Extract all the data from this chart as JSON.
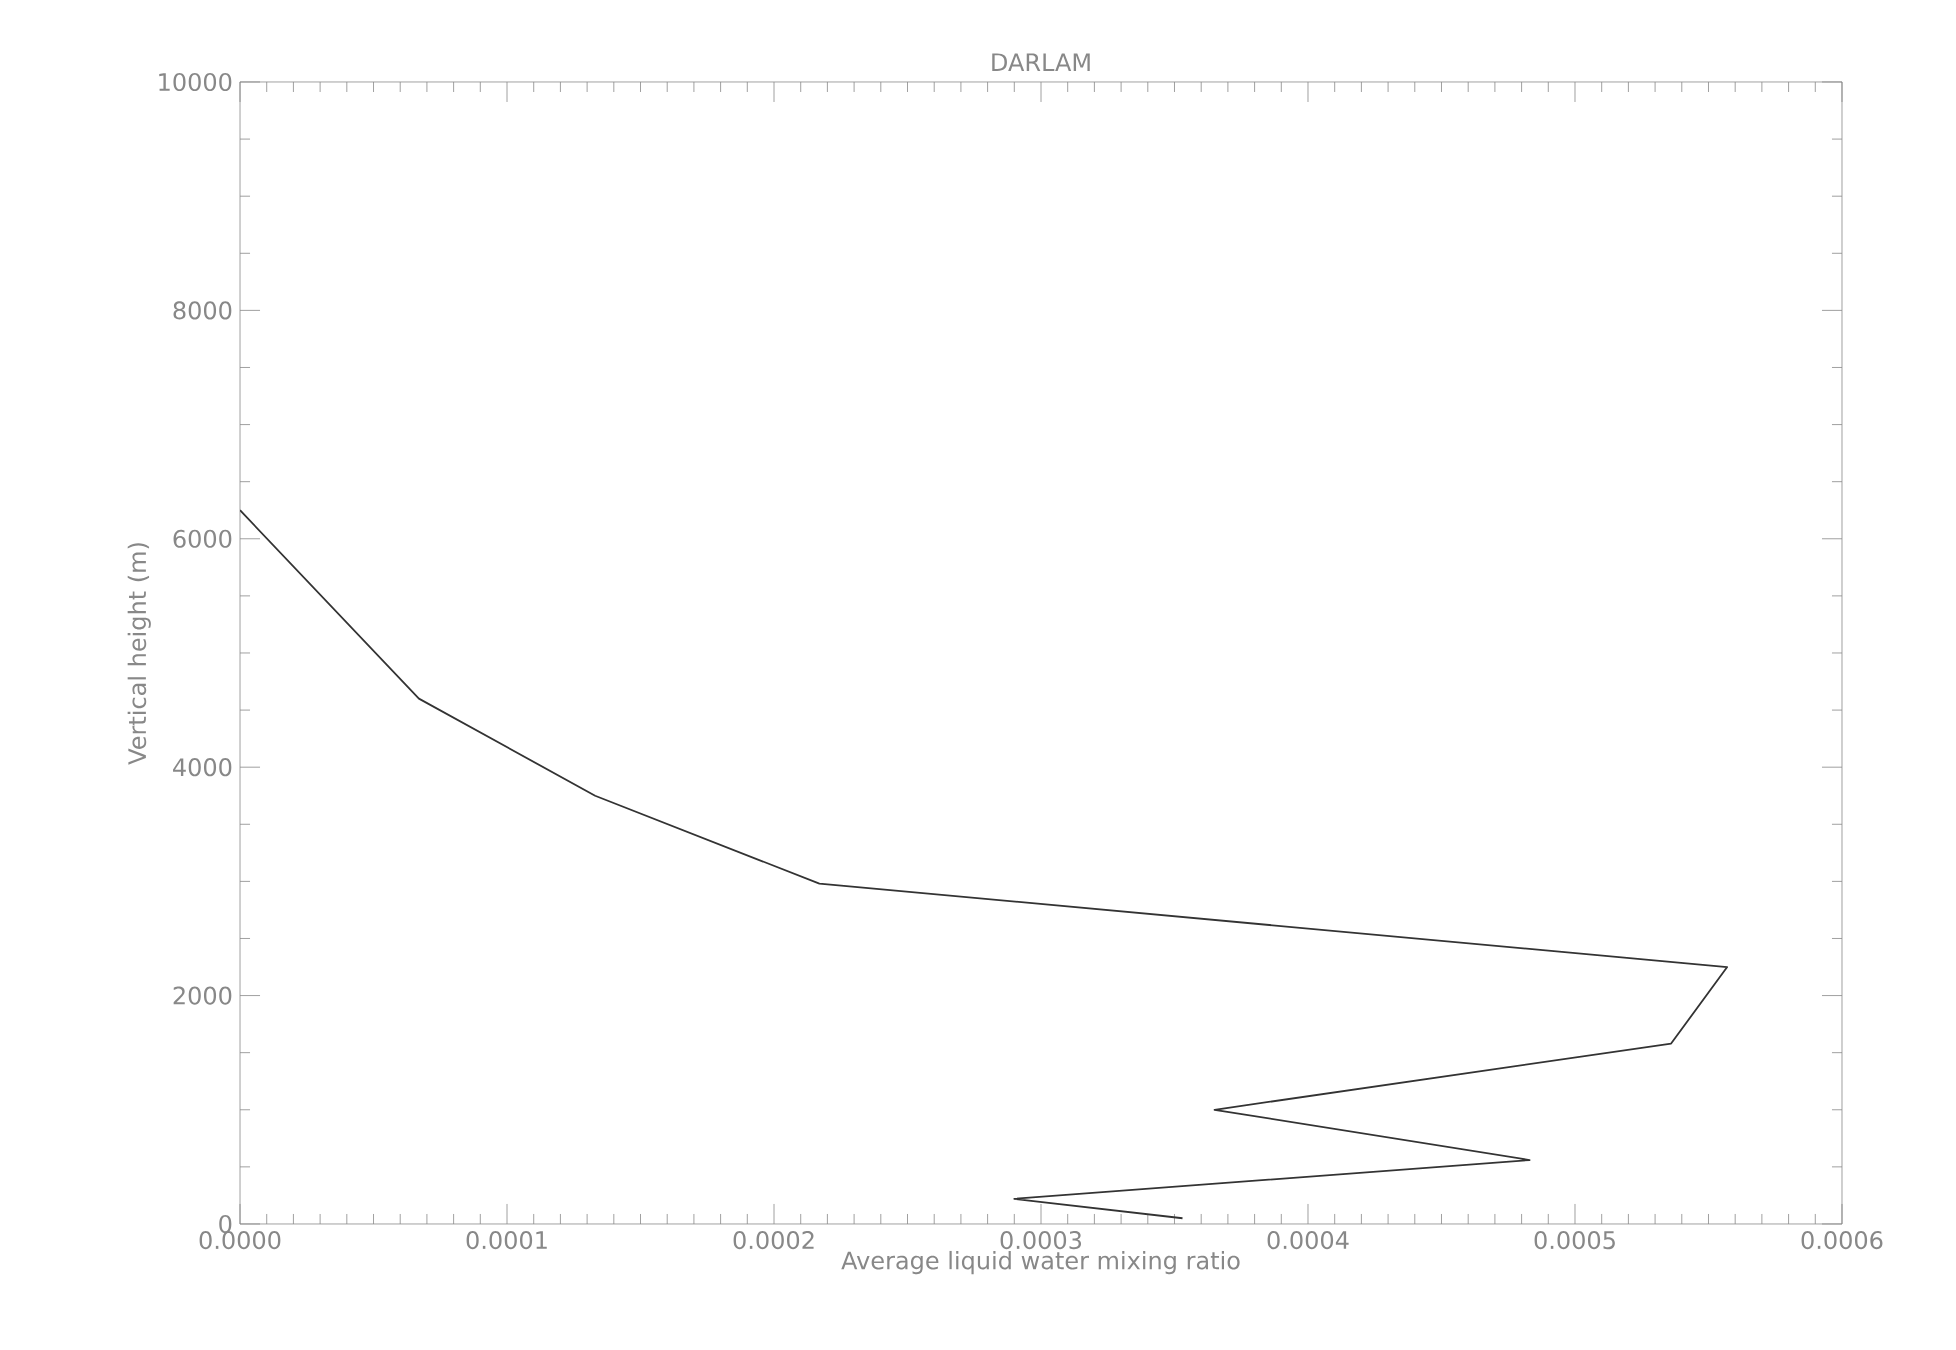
{
  "chart_data": {
    "type": "line",
    "title": "DARLAM",
    "xlabel": "Average liquid water mixing ratio",
    "ylabel": "Vertical height (m)",
    "x": [
      0.0,
      6.7e-05,
      0.000133,
      0.000217,
      0.000557,
      0.000536,
      0.000365,
      0.000483,
      0.00029,
      0.000353
    ],
    "series": [
      {
        "color": "#333333",
        "values": [
          6250,
          4600,
          3750,
          2980,
          2250,
          1580,
          1000,
          560,
          220,
          50
        ]
      }
    ],
    "xlim": [
      0,
      0.0006
    ],
    "ylim": [
      0,
      10000
    ],
    "xticks": [
      {
        "value": 0,
        "label": "0.0000"
      },
      {
        "value": 0.0001,
        "label": "0.0001"
      },
      {
        "value": 0.0002,
        "label": "0.0002"
      },
      {
        "value": 0.0003,
        "label": "0.0003"
      },
      {
        "value": 0.0004,
        "label": "0.0004"
      },
      {
        "value": 0.0005,
        "label": "0.0005"
      },
      {
        "value": 0.0006,
        "label": "0.0006"
      }
    ],
    "yticks": [
      0,
      2000,
      4000,
      6000,
      8000,
      10000
    ],
    "grid": false,
    "marker": "none",
    "line_style": "solid"
  }
}
